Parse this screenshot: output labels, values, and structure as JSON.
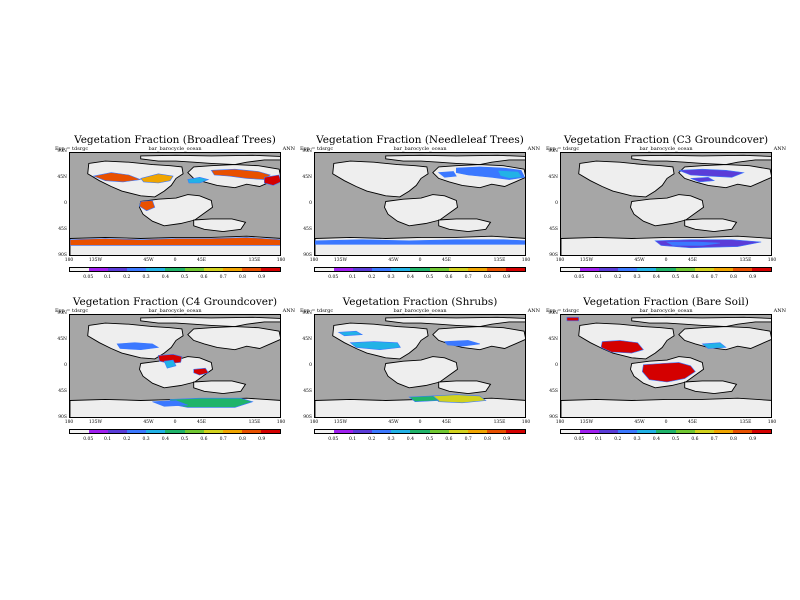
{
  "common": {
    "left_tag": "Exp = tdsrgc",
    "mid_tag": "bar_barocycle_ocean",
    "right_tag": "ANN",
    "lat_ticks": [
      "90N",
      "45N",
      "0",
      "45S",
      "90S"
    ],
    "lon_ticks": [
      "180",
      "135W",
      "45W",
      "0",
      "45E",
      "135E",
      "180"
    ],
    "colorbar_labels": [
      "0.05",
      "0.1",
      "0.2",
      "0.3",
      "0.4",
      "0.5",
      "0.6",
      "0.7",
      "0.8",
      "0.9"
    ],
    "colorbar_colors": [
      "#f2f2f2",
      "#a020f0",
      "#5a3cd8",
      "#3b78ff",
      "#22b2e6",
      "#20b46a",
      "#70c832",
      "#d2d21e",
      "#f0a500",
      "#e85000",
      "#d40000"
    ],
    "colors": {
      "ocean": "#a6a6a6",
      "land_base": "#eeeeee",
      "coast": "#000000"
    }
  },
  "chart_data": [
    {
      "type": "heatmap",
      "title": "Vegetation Fraction (Broadleaf Trees)",
      "variable": "Broadleaf Trees",
      "dominant_levels": [
        0.7,
        0.8,
        0.9
      ]
    },
    {
      "type": "heatmap",
      "title": "Vegetation Fraction (Needleleaf Trees)",
      "variable": "Needleleaf Trees",
      "dominant_levels": [
        0.2,
        0.3,
        0.4
      ]
    },
    {
      "type": "heatmap",
      "title": "Vegetation Fraction (C3 Groundcover)",
      "variable": "C3 Groundcover",
      "dominant_levels": [
        0.05,
        0.1,
        0.2
      ]
    },
    {
      "type": "heatmap",
      "title": "Vegetation Fraction (C4 Groundcover)",
      "variable": "C4 Groundcover",
      "dominant_levels": [
        0.2,
        0.3,
        0.9
      ]
    },
    {
      "type": "heatmap",
      "title": "Vegetation Fraction (Shrubs)",
      "variable": "Shrubs",
      "dominant_levels": [
        0.2,
        0.3,
        0.5,
        0.6,
        0.7
      ]
    },
    {
      "type": "heatmap",
      "title": "Vegetation Fraction (Bare Soil)",
      "variable": "Bare Soil",
      "dominant_levels": [
        0.9
      ]
    }
  ]
}
